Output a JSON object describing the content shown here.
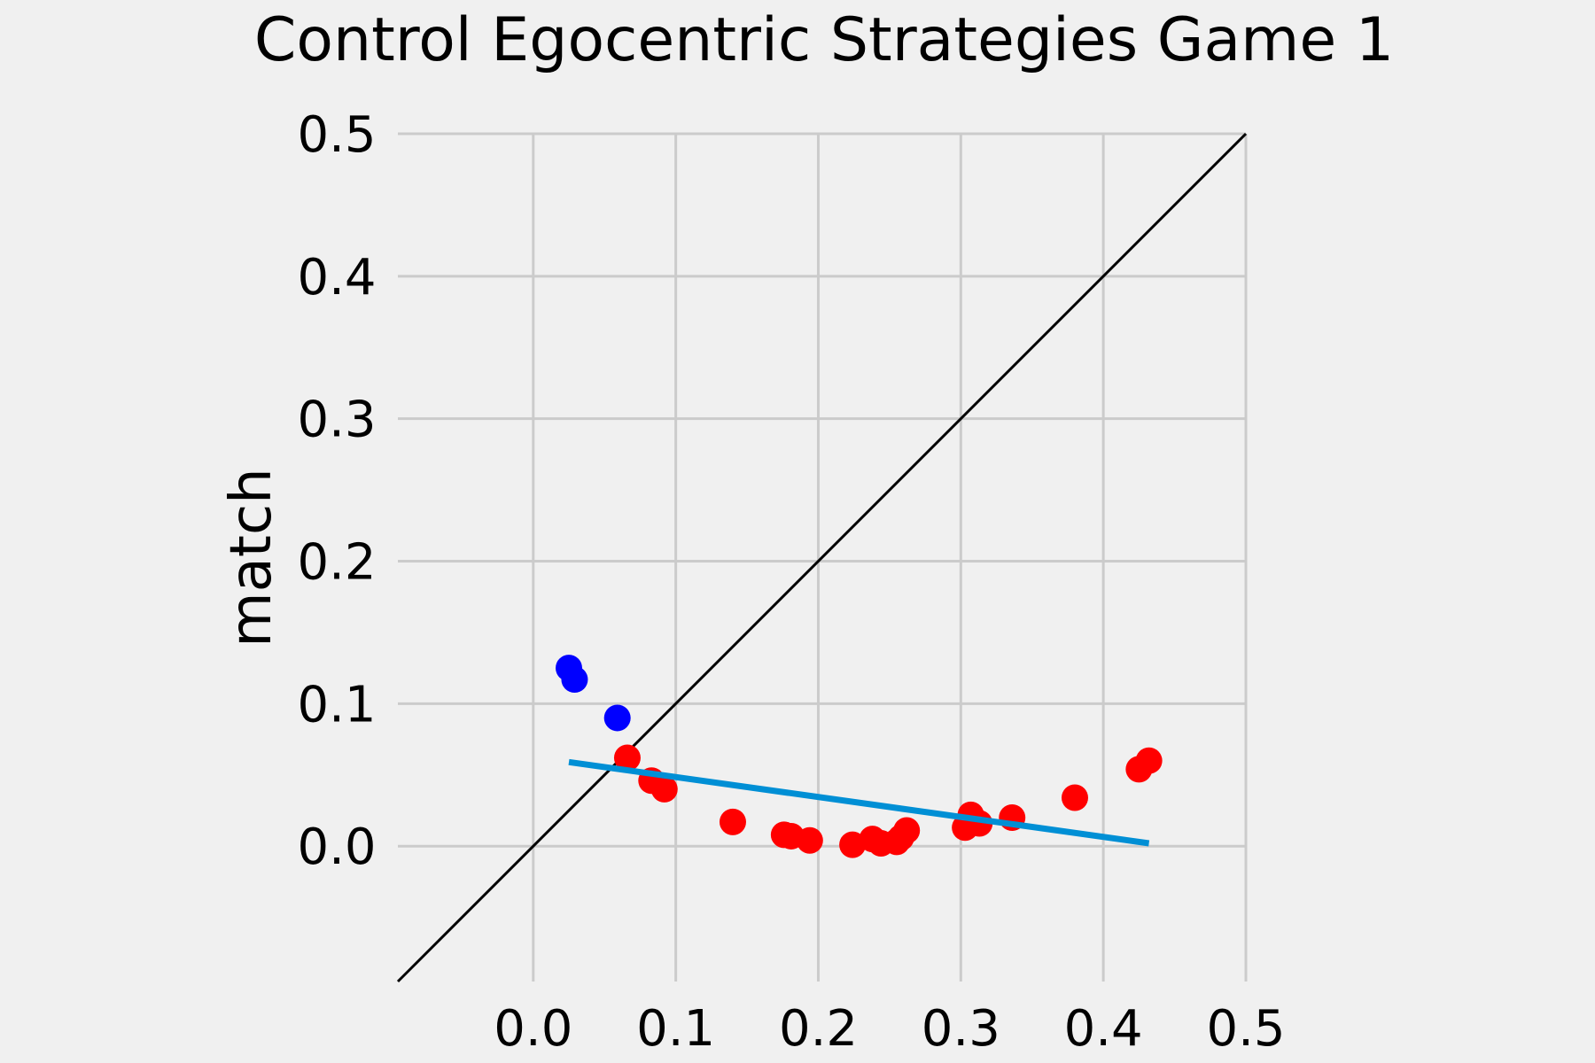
{
  "chart_data": {
    "type": "scatter",
    "title": "Control Egocentric Strategies Game 1",
    "xlabel": "",
    "ylabel": "match",
    "xlim": [
      -0.095,
      0.5
    ],
    "ylim": [
      -0.095,
      0.5
    ],
    "xticks": [
      "0.0",
      "0.1",
      "0.2",
      "0.3",
      "0.4",
      "0.5"
    ],
    "yticks": [
      "0.0",
      "0.1",
      "0.2",
      "0.3",
      "0.4",
      "0.5"
    ],
    "xtick_values": [
      0.0,
      0.1,
      0.2,
      0.3,
      0.4,
      0.5
    ],
    "ytick_values": [
      0.0,
      0.1,
      0.2,
      0.3,
      0.4,
      0.5
    ],
    "grid": true,
    "series": [
      {
        "color": "#0000ff",
        "points": [
          [
            0.025,
            0.125
          ],
          [
            0.029,
            0.117
          ],
          [
            0.059,
            0.09
          ]
        ]
      },
      {
        "color": "#ff0000",
        "points": [
          [
            0.066,
            0.062
          ],
          [
            0.083,
            0.046
          ],
          [
            0.092,
            0.04
          ],
          [
            0.14,
            0.017
          ],
          [
            0.176,
            0.008
          ],
          [
            0.181,
            0.007
          ],
          [
            0.194,
            0.004
          ],
          [
            0.224,
            0.001
          ],
          [
            0.238,
            0.005
          ],
          [
            0.244,
            0.002
          ],
          [
            0.255,
            0.003
          ],
          [
            0.258,
            0.006
          ],
          [
            0.262,
            0.011
          ],
          [
            0.303,
            0.013
          ],
          [
            0.307,
            0.022
          ],
          [
            0.313,
            0.016
          ],
          [
            0.336,
            0.02
          ],
          [
            0.38,
            0.034
          ],
          [
            0.425,
            0.054
          ],
          [
            0.432,
            0.06
          ]
        ]
      }
    ],
    "fit_line": {
      "color": "#008fd5",
      "points": [
        [
          0.025,
          0.059
        ],
        [
          0.432,
          0.002
        ]
      ]
    },
    "identity_line": {
      "color": "#000000",
      "points": [
        [
          -0.095,
          -0.095
        ],
        [
          0.5,
          0.5
        ]
      ]
    }
  }
}
